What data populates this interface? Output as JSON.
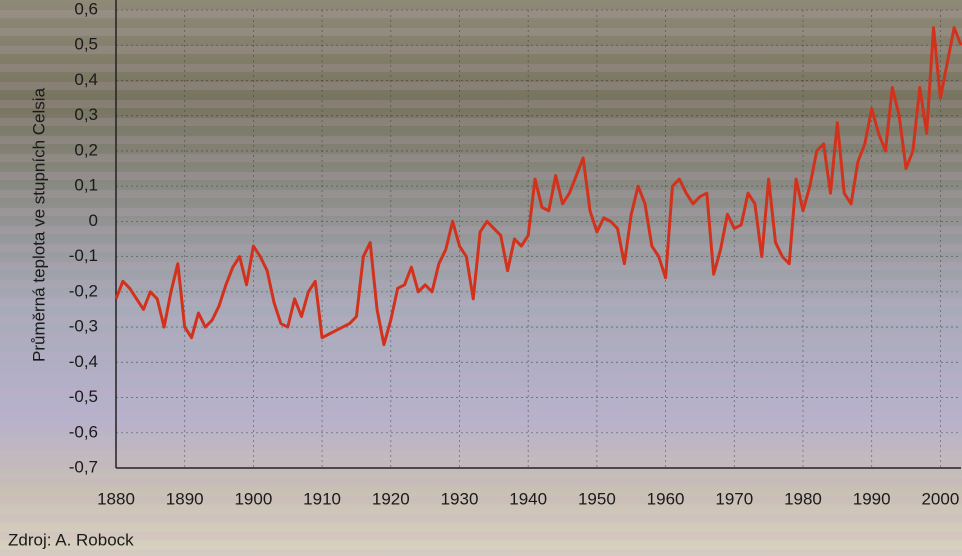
{
  "chart_data": {
    "type": "line",
    "y_label": "Průměrná teplota ve stupních Celsia",
    "source": "Zdroj: A. Robock",
    "x": [
      1880,
      1881,
      1882,
      1883,
      1884,
      1885,
      1886,
      1887,
      1888,
      1889,
      1890,
      1891,
      1892,
      1893,
      1894,
      1895,
      1896,
      1897,
      1898,
      1899,
      1900,
      1901,
      1902,
      1903,
      1904,
      1905,
      1906,
      1907,
      1908,
      1909,
      1910,
      1911,
      1912,
      1913,
      1914,
      1915,
      1916,
      1917,
      1918,
      1919,
      1920,
      1921,
      1922,
      1923,
      1924,
      1925,
      1926,
      1927,
      1928,
      1929,
      1930,
      1931,
      1932,
      1933,
      1934,
      1935,
      1936,
      1937,
      1938,
      1939,
      1940,
      1941,
      1942,
      1943,
      1944,
      1945,
      1946,
      1947,
      1948,
      1949,
      1950,
      1951,
      1952,
      1953,
      1954,
      1955,
      1956,
      1957,
      1958,
      1959,
      1960,
      1961,
      1962,
      1963,
      1964,
      1965,
      1966,
      1967,
      1968,
      1969,
      1970,
      1971,
      1972,
      1973,
      1974,
      1975,
      1976,
      1977,
      1978,
      1979,
      1980,
      1981,
      1982,
      1983,
      1984,
      1985,
      1986,
      1987,
      1988,
      1989,
      1990,
      1991,
      1992,
      1993,
      1994,
      1995,
      1996,
      1997,
      1998,
      1999,
      2000,
      2001,
      2002,
      2003
    ],
    "values": [
      -0.22,
      -0.17,
      -0.19,
      -0.22,
      -0.25,
      -0.2,
      -0.22,
      -0.3,
      -0.2,
      -0.12,
      -0.3,
      -0.33,
      -0.26,
      -0.3,
      -0.28,
      -0.24,
      -0.18,
      -0.13,
      -0.1,
      -0.18,
      -0.07,
      -0.1,
      -0.14,
      -0.23,
      -0.29,
      -0.3,
      -0.22,
      -0.27,
      -0.2,
      -0.17,
      -0.33,
      -0.32,
      -0.31,
      -0.3,
      -0.29,
      -0.27,
      -0.1,
      -0.06,
      -0.25,
      -0.35,
      -0.28,
      -0.19,
      -0.18,
      -0.13,
      -0.2,
      -0.18,
      -0.2,
      -0.12,
      -0.08,
      0,
      -0.07,
      -0.1,
      -0.22,
      -0.03,
      0,
      -0.02,
      -0.04,
      -0.14,
      -0.05,
      -0.07,
      -0.04,
      0.12,
      0.04,
      0.03,
      0.13,
      0.05,
      0.08,
      0.13,
      0.18,
      0.03,
      -0.03,
      0.01,
      0,
      -0.02,
      -0.12,
      0.02,
      0.1,
      0.05,
      -0.07,
      -0.1,
      -0.16,
      0.1,
      0.12,
      0.08,
      0.05,
      0.07,
      0.08,
      -0.15,
      -0.08,
      0.02,
      -0.02,
      -0.01,
      0.08,
      0.05,
      -0.1,
      0.12,
      -0.06,
      -0.1,
      -0.12,
      0.12,
      0.03,
      0.1,
      0.2,
      0.22,
      0.08,
      0.28,
      0.08,
      0.05,
      0.17,
      0.22,
      0.32,
      0.25,
      0.2,
      0.38,
      0.3,
      0.15,
      0.2,
      0.38,
      0.25,
      0.55,
      0.35,
      0.45,
      0.55,
      0.5
    ],
    "color": "#d2321c",
    "xlim": [
      1880,
      2003
    ],
    "xticks": [
      1880,
      1890,
      1900,
      1910,
      1920,
      1930,
      1940,
      1950,
      1960,
      1970,
      1980,
      1990,
      2000
    ],
    "ylim": [
      -0.7,
      0.6
    ],
    "yticks": [
      {
        "value": 0.6,
        "label": "0,6"
      },
      {
        "value": 0.5,
        "label": "0,5"
      },
      {
        "value": 0.4,
        "label": "0,4"
      },
      {
        "value": 0.3,
        "label": "0,3"
      },
      {
        "value": 0.2,
        "label": "0,2"
      },
      {
        "value": 0.1,
        "label": "0,1"
      },
      0,
      {
        "value": -0.1,
        "label": "-0,1"
      },
      {
        "value": -0.2,
        "label": "-0,2"
      },
      {
        "value": -0.3,
        "label": "-0,3"
      },
      {
        "value": -0.4,
        "label": "-0,4"
      },
      {
        "value": -0.5,
        "label": "-0,5"
      },
      {
        "value": -0.6,
        "label": "-0,6"
      },
      {
        "value": -0.7,
        "label": "-0,7"
      }
    ],
    "grid": true
  }
}
